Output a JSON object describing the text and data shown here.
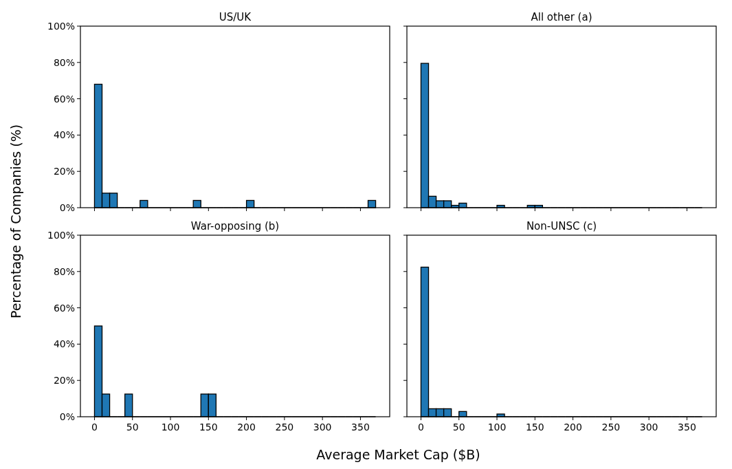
{
  "chart_data": [
    {
      "type": "histogram",
      "title": "US/UK",
      "ylabel": "Percentage of Companies (%)",
      "bins": [
        0,
        10,
        20,
        30,
        40,
        50,
        60,
        70,
        80,
        90,
        100,
        110,
        120,
        130,
        140,
        150,
        160,
        170,
        180,
        190,
        200,
        210,
        220,
        230,
        240,
        250,
        260,
        270,
        280,
        290,
        300,
        310,
        320,
        330,
        340,
        350,
        360,
        370
      ],
      "values": [
        68,
        8,
        8,
        0,
        0,
        0,
        4,
        0,
        0,
        0,
        0,
        0,
        0,
        4,
        0,
        0,
        0,
        0,
        0,
        0,
        4,
        0,
        0,
        0,
        0,
        0,
        0,
        0,
        0,
        0,
        0,
        0,
        0,
        0,
        0,
        0,
        4
      ],
      "color": "#1f77b4",
      "xlim": [
        -18.5,
        388.5
      ],
      "xticks": [
        {
          "value": 0,
          "label": null
        },
        {
          "value": 50,
          "label": null
        },
        {
          "value": 100,
          "label": null
        },
        {
          "value": 150,
          "label": null
        },
        {
          "value": 200,
          "label": null
        },
        {
          "value": 250,
          "label": null
        },
        {
          "value": 300,
          "label": null
        },
        {
          "value": 350,
          "label": null
        }
      ],
      "ylim": [
        0,
        100
      ],
      "yticks": [
        {
          "value": 0,
          "label": "0%"
        },
        {
          "value": 20,
          "label": "20%"
        },
        {
          "value": 40,
          "label": "40%"
        },
        {
          "value": 60,
          "label": "60%"
        },
        {
          "value": 80,
          "label": "80%"
        },
        {
          "value": 100,
          "label": "100%"
        }
      ],
      "tick_labels": "y"
    },
    {
      "type": "histogram",
      "title": "All other (a)",
      "bins": [
        0,
        10,
        20,
        30,
        40,
        50,
        60,
        70,
        80,
        90,
        100,
        110,
        120,
        130,
        140,
        150,
        160,
        170,
        180,
        190,
        200,
        210,
        220,
        230,
        240,
        250,
        260,
        270,
        280,
        290,
        300,
        310,
        320,
        330,
        340,
        350,
        360,
        370
      ],
      "values": [
        79.5,
        6.3,
        3.8,
        3.8,
        1.3,
        2.5,
        0,
        0,
        0,
        0,
        1.3,
        0,
        0,
        0,
        1.3,
        1.3,
        0,
        0,
        0,
        0,
        0,
        0,
        0,
        0,
        0,
        0,
        0,
        0,
        0,
        0,
        0,
        0,
        0,
        0,
        0,
        0,
        0
      ],
      "color": "#1f77b4",
      "xlim": [
        -18.5,
        388.5
      ],
      "xticks": [
        {
          "value": 0,
          "label": null
        },
        {
          "value": 50,
          "label": null
        },
        {
          "value": 100,
          "label": null
        },
        {
          "value": 150,
          "label": null
        },
        {
          "value": 200,
          "label": null
        },
        {
          "value": 250,
          "label": null
        },
        {
          "value": 300,
          "label": null
        },
        {
          "value": 350,
          "label": null
        }
      ],
      "ylim": [
        0,
        100
      ],
      "yticks": [
        {
          "value": 0,
          "label": null
        },
        {
          "value": 20,
          "label": null
        },
        {
          "value": 40,
          "label": null
        },
        {
          "value": 60,
          "label": null
        },
        {
          "value": 80,
          "label": null
        },
        {
          "value": 100,
          "label": null
        }
      ],
      "tick_labels": false
    },
    {
      "type": "histogram",
      "title": "War-opposing (b)",
      "xlabel": "Average Market Cap ($B)",
      "bins": [
        0,
        10,
        20,
        30,
        40,
        50,
        60,
        70,
        80,
        90,
        100,
        110,
        120,
        130,
        140,
        150,
        160,
        170,
        180,
        190,
        200,
        210,
        220,
        230,
        240,
        250,
        260,
        270,
        280,
        290,
        300,
        310,
        320,
        330,
        340,
        350,
        360,
        370
      ],
      "values": [
        50,
        12.5,
        0,
        0,
        12.5,
        0,
        0,
        0,
        0,
        0,
        0,
        0,
        0,
        0,
        12.5,
        12.5,
        0,
        0,
        0,
        0,
        0,
        0,
        0,
        0,
        0,
        0,
        0,
        0,
        0,
        0,
        0,
        0,
        0,
        0,
        0,
        0,
        0
      ],
      "color": "#1f77b4",
      "xlim": [
        -18.5,
        388.5
      ],
      "xticks": [
        0,
        50,
        100,
        150,
        200,
        250,
        300,
        350
      ],
      "ylim": [
        0,
        100
      ],
      "yticks": [
        {
          "value": 0,
          "label": "0%"
        },
        {
          "value": 20,
          "label": "20%"
        },
        {
          "value": 40,
          "label": "40%"
        },
        {
          "value": 60,
          "label": "60%"
        },
        {
          "value": 80,
          "label": "80%"
        },
        {
          "value": 100,
          "label": "100%"
        }
      ]
    },
    {
      "type": "histogram",
      "title": "Non-UNSC (c)",
      "bins": [
        0,
        10,
        20,
        30,
        40,
        50,
        60,
        70,
        80,
        90,
        100,
        110,
        120,
        130,
        140,
        150,
        160,
        170,
        180,
        190,
        200,
        210,
        220,
        230,
        240,
        250,
        260,
        270,
        280,
        290,
        300,
        310,
        320,
        330,
        340,
        350,
        360,
        370
      ],
      "values": [
        82.4,
        4.4,
        4.4,
        4.4,
        0,
        2.9,
        0,
        0,
        0,
        0,
        1.5,
        0,
        0,
        0,
        0,
        0,
        0,
        0,
        0,
        0,
        0,
        0,
        0,
        0,
        0,
        0,
        0,
        0,
        0,
        0,
        0,
        0,
        0,
        0,
        0,
        0,
        0
      ],
      "color": "#1f77b4",
      "xlim": [
        -18.5,
        388.5
      ],
      "xticks": [
        0,
        50,
        100,
        150,
        200,
        250,
        300,
        350
      ],
      "ylim": [
        0,
        100
      ],
      "yticks": [
        {
          "value": 0,
          "label": null
        },
        {
          "value": 20,
          "label": null
        },
        {
          "value": 40,
          "label": null
        },
        {
          "value": 60,
          "label": null
        },
        {
          "value": 80,
          "label": null
        },
        {
          "value": 100,
          "label": null
        }
      ],
      "tick_labels": "x"
    }
  ]
}
